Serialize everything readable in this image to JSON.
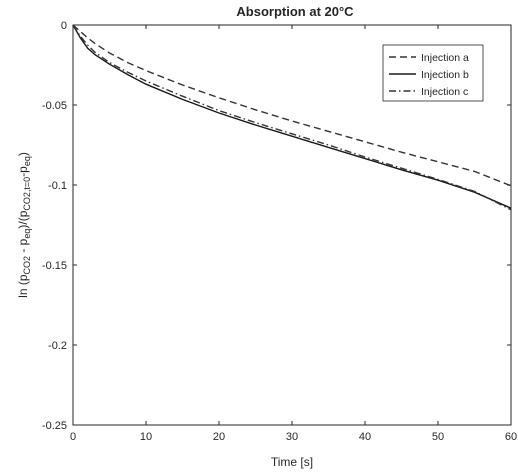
{
  "chart_data": {
    "type": "line",
    "title": "Absorption at 20°C",
    "xlabel": "Time [s]",
    "ylabel": {
      "parts": [
        {
          "t": "ln (p",
          "s": "n"
        },
        {
          "t": "CO2",
          "s": "sub"
        },
        {
          "t": " - p",
          "s": "n"
        },
        {
          "t": "eq",
          "s": "sub"
        },
        {
          "t": ")/(p",
          "s": "n"
        },
        {
          "t": "CO2,t=0",
          "s": "sub"
        },
        {
          "t": "-p",
          "s": "n"
        },
        {
          "t": "eq",
          "s": "sub"
        },
        {
          "t": ")",
          "s": "n"
        }
      ]
    },
    "xlim": [
      0,
      60
    ],
    "ylim": [
      -0.25,
      0
    ],
    "xticks": [
      0,
      10,
      20,
      30,
      40,
      50,
      60
    ],
    "xtick_labels": [
      "0",
      "10",
      "20",
      "30",
      "40",
      "50",
      "60"
    ],
    "yticks": [
      0,
      -0.05,
      -0.1,
      -0.15,
      -0.2,
      -0.25
    ],
    "ytick_labels": [
      "0",
      "-0.05",
      "-0.1",
      "-0.15",
      "-0.2",
      "-0.25"
    ],
    "grid": false,
    "legend_position": "top-right",
    "series": [
      {
        "name": "Injection a",
        "line_style": "dashed",
        "color": "#333333",
        "x": [
          0,
          1,
          2,
          3,
          5,
          7.5,
          10,
          15,
          20,
          25,
          30,
          35,
          40,
          45,
          50,
          55,
          60
        ],
        "y": [
          0,
          -0.004,
          -0.008,
          -0.0115,
          -0.0175,
          -0.0235,
          -0.0285,
          -0.0375,
          -0.0455,
          -0.053,
          -0.06,
          -0.0665,
          -0.073,
          -0.0795,
          -0.0855,
          -0.0915,
          -0.1005
        ]
      },
      {
        "name": "Injection b",
        "line_style": "solid",
        "color": "#1a1a1a",
        "x": [
          0,
          0.5,
          1,
          2,
          3,
          5,
          7.5,
          10,
          15,
          20,
          25,
          30,
          35,
          40,
          45,
          50,
          55,
          60
        ],
        "y": [
          0,
          -0.004,
          -0.008,
          -0.0145,
          -0.0185,
          -0.0245,
          -0.031,
          -0.037,
          -0.0465,
          -0.055,
          -0.0625,
          -0.0695,
          -0.0765,
          -0.0835,
          -0.0905,
          -0.097,
          -0.1045,
          -0.1145
        ]
      },
      {
        "name": "Injection c",
        "line_style": "dashdot",
        "color": "#333333",
        "x": [
          0,
          0.5,
          1,
          2,
          3,
          5,
          7.5,
          10,
          15,
          20,
          25,
          30,
          35,
          40,
          45,
          50,
          55,
          60
        ],
        "y": [
          0,
          -0.0035,
          -0.007,
          -0.0125,
          -0.017,
          -0.0235,
          -0.0295,
          -0.035,
          -0.0445,
          -0.0535,
          -0.061,
          -0.068,
          -0.075,
          -0.0825,
          -0.0895,
          -0.0965,
          -0.104,
          -0.1155
        ]
      }
    ]
  }
}
